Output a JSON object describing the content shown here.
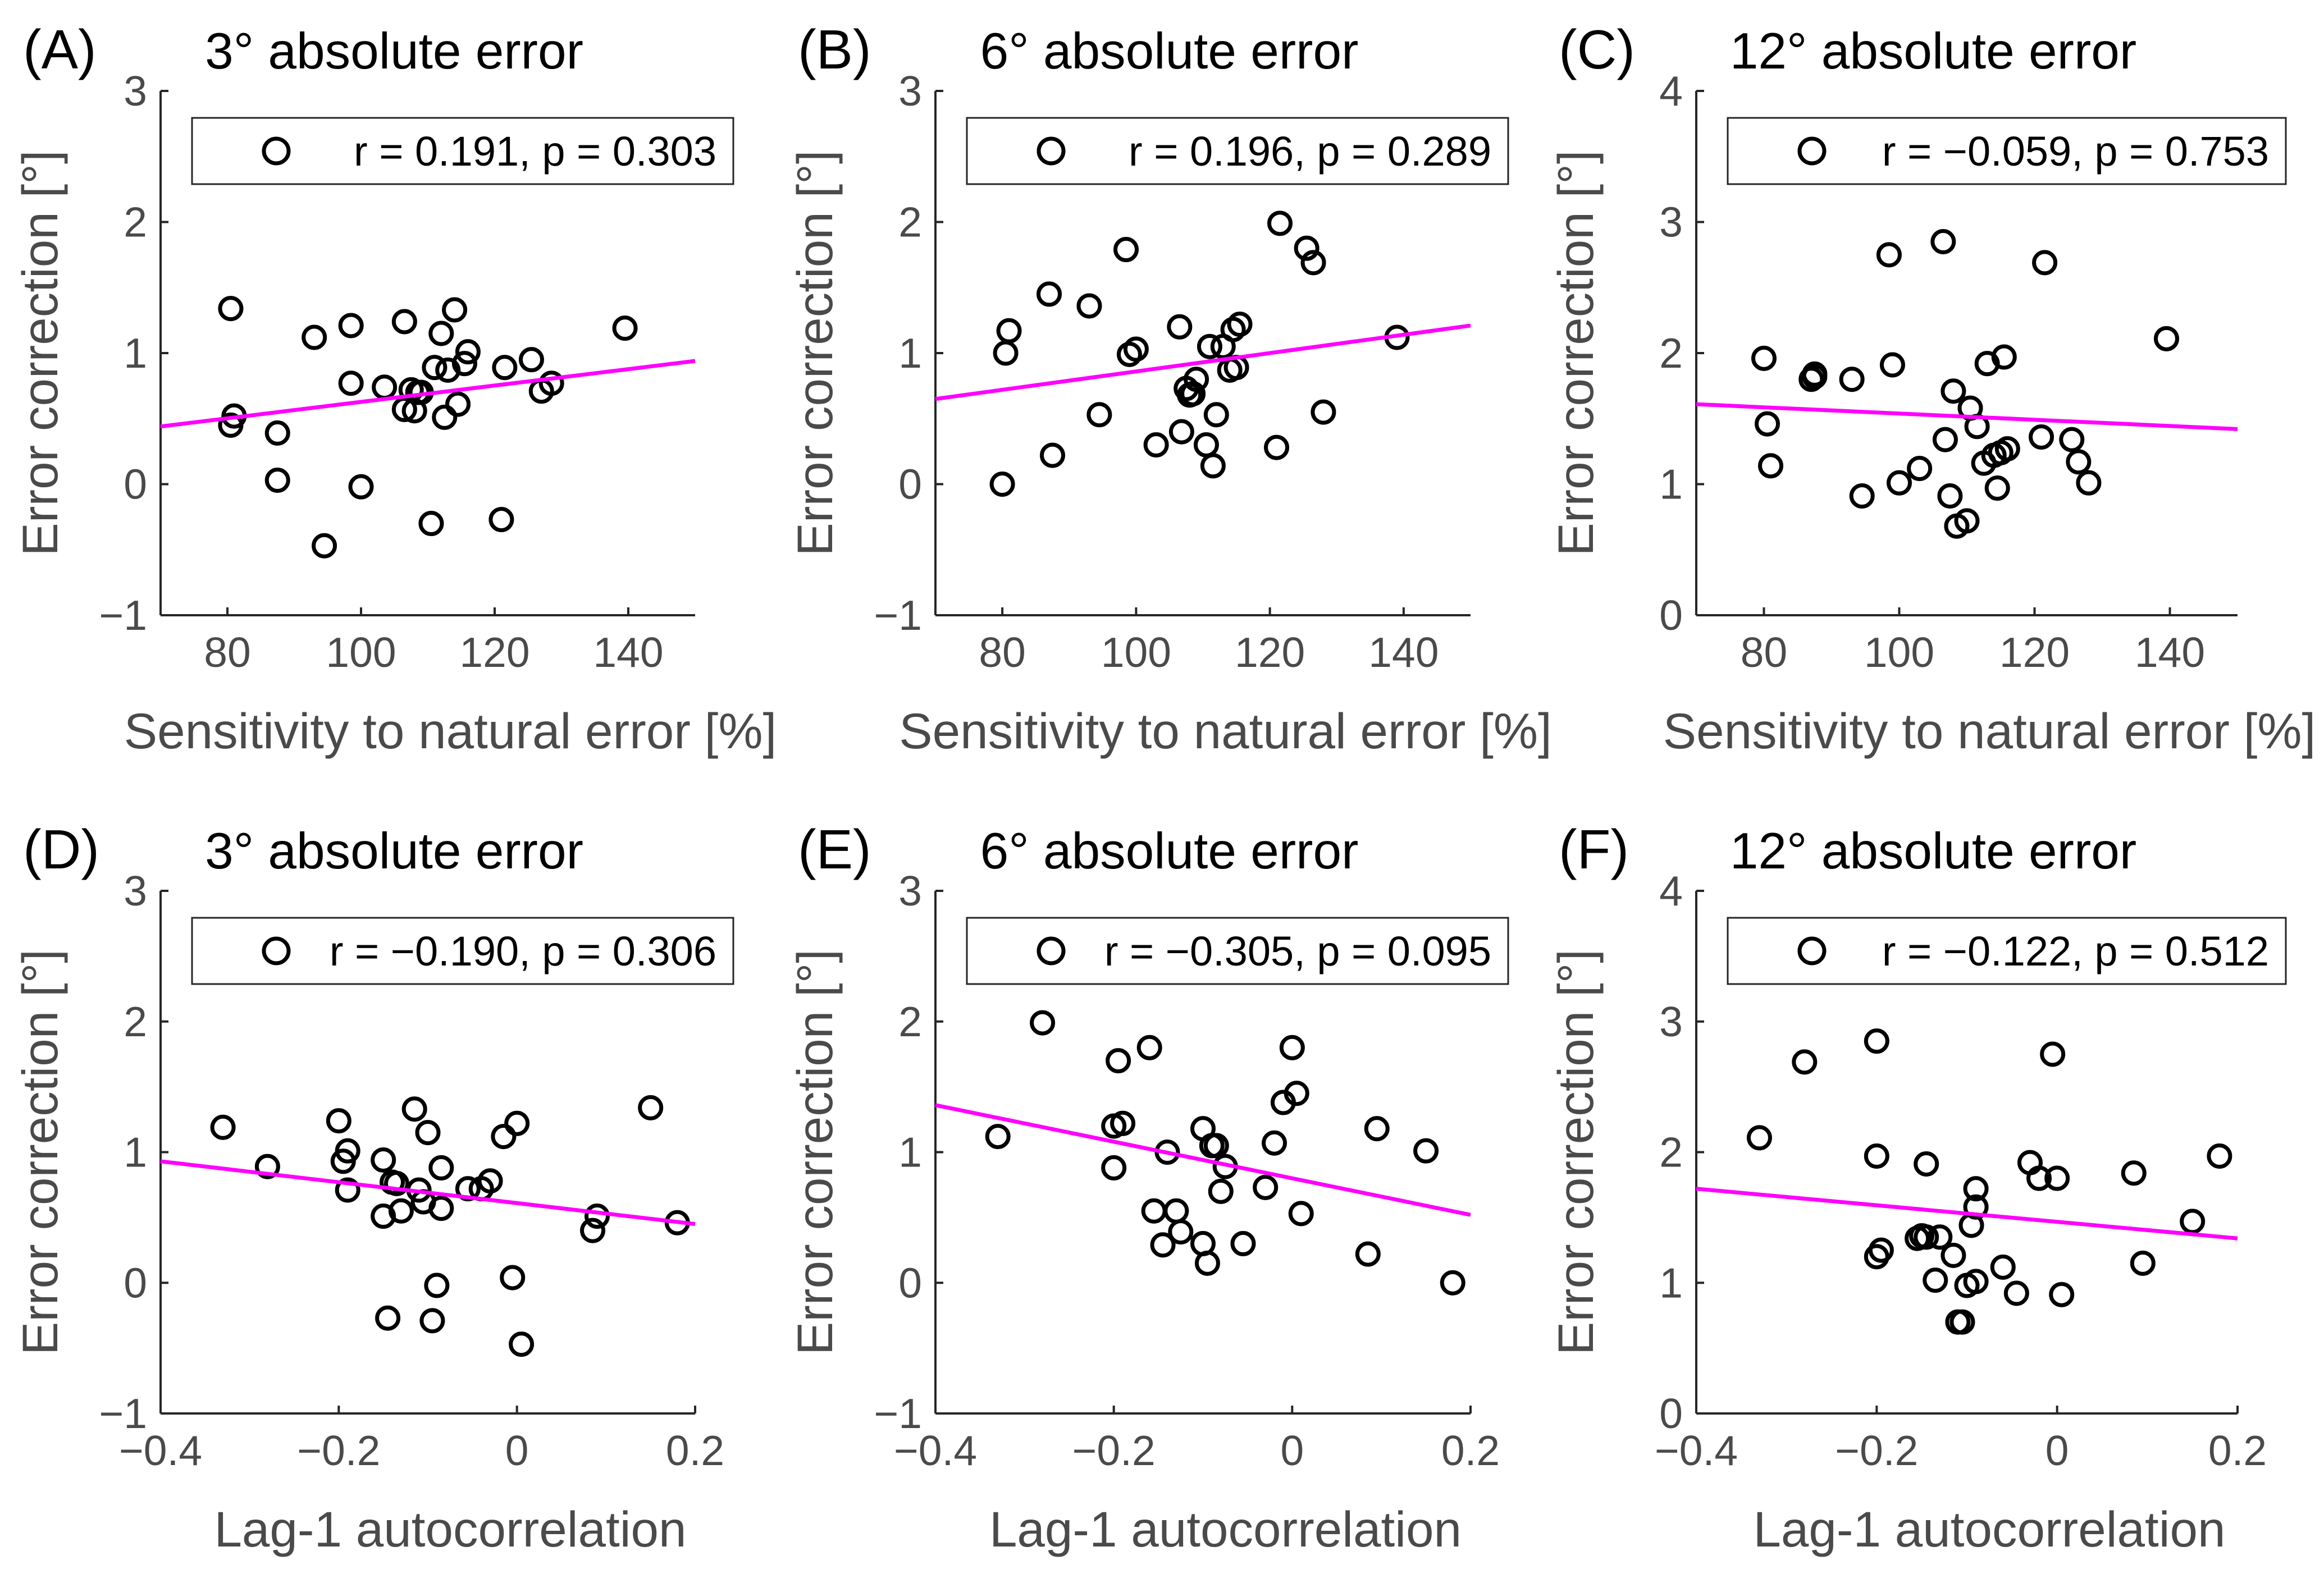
{
  "colors": {
    "background": "#ffffff",
    "axis": "#262626",
    "text": "#000000",
    "label": "#4a4a4a",
    "fit_line": "#ff00ff",
    "marker": "#000000"
  },
  "chart_data": [
    {
      "type": "scatter",
      "panel": "(A)",
      "title": "3° absolute error",
      "xlabel": "Sensitivity to natural error [%]",
      "ylabel": "Error correction [°]",
      "xlim": [
        70,
        150
      ],
      "ylim": [
        -1,
        3
      ],
      "xticks": [
        80,
        100,
        120,
        140
      ],
      "yticks": [
        -1,
        0,
        1,
        2,
        3
      ],
      "ytick_labels": [
        "−1",
        "0",
        "1",
        "2",
        "3"
      ],
      "legend": "r = 0.191, p = 0.303",
      "fit": [
        [
          70,
          0.44
        ],
        [
          150,
          0.94
        ]
      ],
      "points": [
        [
          80.5,
          0.45
        ],
        [
          81,
          0.52
        ],
        [
          80.5,
          1.34
        ],
        [
          87.5,
          0.39
        ],
        [
          87.5,
          0.03
        ],
        [
          93,
          1.12
        ],
        [
          94.5,
          -0.47
        ],
        [
          98.5,
          1.21
        ],
        [
          98.5,
          0.77
        ],
        [
          100,
          -0.02
        ],
        [
          103.5,
          0.74
        ],
        [
          106.5,
          1.24
        ],
        [
          106.5,
          0.57
        ],
        [
          107.5,
          0.72
        ],
        [
          108,
          0.56
        ],
        [
          108.5,
          0.7
        ],
        [
          109,
          0.7
        ],
        [
          110.5,
          -0.3
        ],
        [
          111,
          0.89
        ],
        [
          112,
          1.15
        ],
        [
          112.5,
          0.51
        ],
        [
          113,
          0.87
        ],
        [
          114,
          1.33
        ],
        [
          114.5,
          0.61
        ],
        [
          115.5,
          0.92
        ],
        [
          116,
          1.01
        ],
        [
          121,
          -0.27
        ],
        [
          121.5,
          0.89
        ],
        [
          125.5,
          0.95
        ],
        [
          127,
          0.71
        ],
        [
          128.5,
          0.77
        ],
        [
          139.5,
          1.19
        ]
      ]
    },
    {
      "type": "scatter",
      "panel": "(B)",
      "title": "6° absolute error",
      "xlabel": "Sensitivity to natural error [%]",
      "ylabel": "Error correction [°]",
      "xlim": [
        70,
        150
      ],
      "ylim": [
        -1,
        3
      ],
      "xticks": [
        80,
        100,
        120,
        140
      ],
      "yticks": [
        -1,
        0,
        1,
        2,
        3
      ],
      "ytick_labels": [
        "−1",
        "0",
        "1",
        "2",
        "3"
      ],
      "legend": "r = 0.196, p = 0.289",
      "fit": [
        [
          70,
          0.65
        ],
        [
          150,
          1.21
        ]
      ],
      "points": [
        [
          80,
          0
        ],
        [
          80.5,
          1
        ],
        [
          81,
          1.17
        ],
        [
          87,
          1.45
        ],
        [
          87.5,
          0.22
        ],
        [
          93,
          1.36
        ],
        [
          94.5,
          0.53
        ],
        [
          98.5,
          1.79
        ],
        [
          99,
          0.99
        ],
        [
          100,
          1.03
        ],
        [
          103,
          0.3
        ],
        [
          106.5,
          1.2
        ],
        [
          106.8,
          0.4
        ],
        [
          107.5,
          0.73
        ],
        [
          108,
          0.68
        ],
        [
          108.5,
          0.69
        ],
        [
          109,
          0.8
        ],
        [
          110.5,
          0.3
        ],
        [
          111,
          1.05
        ],
        [
          111.5,
          0.14
        ],
        [
          112,
          0.53
        ],
        [
          113,
          1.05
        ],
        [
          114,
          0.87
        ],
        [
          114.5,
          1.18
        ],
        [
          115,
          0.89
        ],
        [
          115.5,
          1.22
        ],
        [
          121,
          0.28
        ],
        [
          121.5,
          1.99
        ],
        [
          125.5,
          1.8
        ],
        [
          126.5,
          1.69
        ],
        [
          128,
          0.55
        ],
        [
          139,
          1.12
        ]
      ]
    },
    {
      "type": "scatter",
      "panel": "(C)",
      "title": "12° absolute error",
      "xlabel": "Sensitivity to natural error [%]",
      "ylabel": "Error correction [°]",
      "xlim": [
        70,
        150
      ],
      "ylim": [
        0,
        4
      ],
      "xticks": [
        80,
        100,
        120,
        140
      ],
      "yticks": [
        0,
        1,
        2,
        3,
        4
      ],
      "ytick_labels": [
        "0",
        "1",
        "2",
        "3",
        "4"
      ],
      "legend": "r = −0.059, p = 0.753",
      "fit": [
        [
          70,
          1.61
        ],
        [
          150,
          1.42
        ]
      ],
      "points": [
        [
          80,
          1.96
        ],
        [
          80.5,
          1.46
        ],
        [
          81,
          1.14
        ],
        [
          87,
          1.8
        ],
        [
          87.5,
          1.84
        ],
        [
          87.5,
          1.82
        ],
        [
          93,
          1.8
        ],
        [
          94.5,
          0.91
        ],
        [
          98.5,
          2.75
        ],
        [
          99,
          1.91
        ],
        [
          100,
          1.01
        ],
        [
          103,
          1.12
        ],
        [
          106.5,
          2.85
        ],
        [
          106.8,
          1.34
        ],
        [
          107.5,
          0.91
        ],
        [
          108,
          1.71
        ],
        [
          108.5,
          0.68
        ],
        [
          110,
          0.72
        ],
        [
          110.5,
          1.58
        ],
        [
          111.5,
          1.44
        ],
        [
          112.5,
          1.16
        ],
        [
          113,
          1.92
        ],
        [
          114,
          1.22
        ],
        [
          114.5,
          0.97
        ],
        [
          115,
          1.24
        ],
        [
          115.5,
          1.97
        ],
        [
          116,
          1.27
        ],
        [
          121,
          1.36
        ],
        [
          121.5,
          2.69
        ],
        [
          125.5,
          1.34
        ],
        [
          126.5,
          1.17
        ],
        [
          128,
          1.01
        ],
        [
          139.5,
          2.11
        ]
      ]
    },
    {
      "type": "scatter",
      "panel": "(D)",
      "title": "3° absolute error",
      "xlabel": "Lag-1 autocorrelation",
      "ylabel": "Error correction [°]",
      "xlim": [
        -0.4,
        0.2
      ],
      "ylim": [
        -1,
        3
      ],
      "xticks": [
        -0.4,
        -0.2,
        0,
        0.2
      ],
      "xtick_labels": [
        "−0.4",
        "−0.2",
        "0",
        "0.2"
      ],
      "yticks": [
        -1,
        0,
        1,
        2,
        3
      ],
      "ytick_labels": [
        "−1",
        "0",
        "1",
        "2",
        "3"
      ],
      "legend": "r = −0.190, p = 0.306",
      "fit": [
        [
          -0.4,
          0.93
        ],
        [
          0.2,
          0.45
        ]
      ],
      "points": [
        [
          -0.33,
          1.19
        ],
        [
          -0.28,
          0.89
        ],
        [
          -0.2,
          1.24
        ],
        [
          -0.195,
          0.93
        ],
        [
          -0.19,
          1.01
        ],
        [
          -0.19,
          0.71
        ],
        [
          -0.15,
          0.94
        ],
        [
          -0.15,
          0.51
        ],
        [
          -0.145,
          -0.27
        ],
        [
          -0.14,
          0.77
        ],
        [
          -0.135,
          0.76
        ],
        [
          -0.13,
          0.55
        ],
        [
          -0.115,
          1.33
        ],
        [
          -0.11,
          0.71
        ],
        [
          -0.105,
          0.62
        ],
        [
          -0.1,
          1.15
        ],
        [
          -0.095,
          -0.29
        ],
        [
          -0.09,
          -0.02
        ],
        [
          -0.085,
          0.57
        ],
        [
          -0.085,
          0.88
        ],
        [
          -0.055,
          0.72
        ],
        [
          -0.04,
          0.72
        ],
        [
          -0.03,
          0.78
        ],
        [
          -0.015,
          1.12
        ],
        [
          -0.005,
          0.04
        ],
        [
          0,
          1.22
        ],
        [
          0.005,
          -0.47
        ],
        [
          0.085,
          0.4
        ],
        [
          0.09,
          0.51
        ],
        [
          0.15,
          1.34
        ],
        [
          0.18,
          0.46
        ]
      ]
    },
    {
      "type": "scatter",
      "panel": "(E)",
      "title": "6° absolute error",
      "xlabel": "Lag-1 autocorrelation",
      "ylabel": "Error correction [°]",
      "xlim": [
        -0.4,
        0.2
      ],
      "ylim": [
        -1,
        3
      ],
      "xticks": [
        -0.4,
        -0.2,
        0,
        0.2
      ],
      "xtick_labels": [
        "−0.4",
        "−0.2",
        "0",
        "0.2"
      ],
      "yticks": [
        -1,
        0,
        1,
        2,
        3
      ],
      "ytick_labels": [
        "−1",
        "0",
        "1",
        "2",
        "3"
      ],
      "legend": "r = −0.305, p = 0.095",
      "fit": [
        [
          -0.4,
          1.36
        ],
        [
          0.2,
          0.52
        ]
      ],
      "points": [
        [
          -0.33,
          1.12
        ],
        [
          -0.28,
          1.99
        ],
        [
          -0.2,
          1.2
        ],
        [
          -0.2,
          0.88
        ],
        [
          -0.195,
          1.7
        ],
        [
          -0.19,
          1.22
        ],
        [
          -0.16,
          1.8
        ],
        [
          -0.155,
          0.55
        ],
        [
          -0.145,
          0.29
        ],
        [
          -0.14,
          1
        ],
        [
          -0.13,
          0.55
        ],
        [
          -0.125,
          0.39
        ],
        [
          -0.1,
          1.18
        ],
        [
          -0.1,
          0.3
        ],
        [
          -0.095,
          0.15
        ],
        [
          -0.09,
          1.05
        ],
        [
          -0.085,
          1.05
        ],
        [
          -0.08,
          0.7
        ],
        [
          -0.075,
          0.89
        ],
        [
          -0.055,
          0.3
        ],
        [
          -0.03,
          0.73
        ],
        [
          -0.02,
          1.07
        ],
        [
          -0.01,
          1.38
        ],
        [
          0,
          1.8
        ],
        [
          0.005,
          1.45
        ],
        [
          0.01,
          0.53
        ],
        [
          0.085,
          0.22
        ],
        [
          0.095,
          1.18
        ],
        [
          0.15,
          1.01
        ],
        [
          0.18,
          0
        ]
      ]
    },
    {
      "type": "scatter",
      "panel": "(F)",
      "title": "12° absolute error",
      "xlabel": "Lag-1 autocorrelation",
      "ylabel": "Error correction [°]",
      "xlim": [
        -0.4,
        0.2
      ],
      "ylim": [
        0,
        4
      ],
      "xticks": [
        -0.4,
        -0.2,
        0,
        0.2
      ],
      "xtick_labels": [
        "−0.4",
        "−0.2",
        "0",
        "0.2"
      ],
      "yticks": [
        0,
        1,
        2,
        3,
        4
      ],
      "ytick_labels": [
        "0",
        "1",
        "2",
        "3",
        "4"
      ],
      "legend": "r = −0.122, p = 0.512",
      "fit": [
        [
          -0.4,
          1.72
        ],
        [
          0.2,
          1.34
        ]
      ],
      "points": [
        [
          -0.33,
          2.11
        ],
        [
          -0.28,
          2.69
        ],
        [
          -0.2,
          1.97
        ],
        [
          -0.2,
          1.2
        ],
        [
          -0.195,
          1.25
        ],
        [
          -0.2,
          2.85
        ],
        [
          -0.155,
          1.34
        ],
        [
          -0.15,
          1.36
        ],
        [
          -0.145,
          1.35
        ],
        [
          -0.145,
          1.91
        ],
        [
          -0.135,
          1.02
        ],
        [
          -0.13,
          1.35
        ],
        [
          -0.115,
          1.21
        ],
        [
          -0.11,
          0.7
        ],
        [
          -0.105,
          0.7
        ],
        [
          -0.1,
          0.98
        ],
        [
          -0.095,
          1.44
        ],
        [
          -0.09,
          1.72
        ],
        [
          -0.09,
          1.01
        ],
        [
          -0.09,
          1.58
        ],
        [
          -0.06,
          1.12
        ],
        [
          -0.045,
          0.92
        ],
        [
          -0.03,
          1.92
        ],
        [
          -0.02,
          1.8
        ],
        [
          -0.005,
          2.75
        ],
        [
          0,
          1.8
        ],
        [
          0.005,
          0.91
        ],
        [
          0.085,
          1.84
        ],
        [
          0.095,
          1.15
        ],
        [
          0.15,
          1.47
        ],
        [
          0.18,
          1.97
        ]
      ]
    }
  ]
}
